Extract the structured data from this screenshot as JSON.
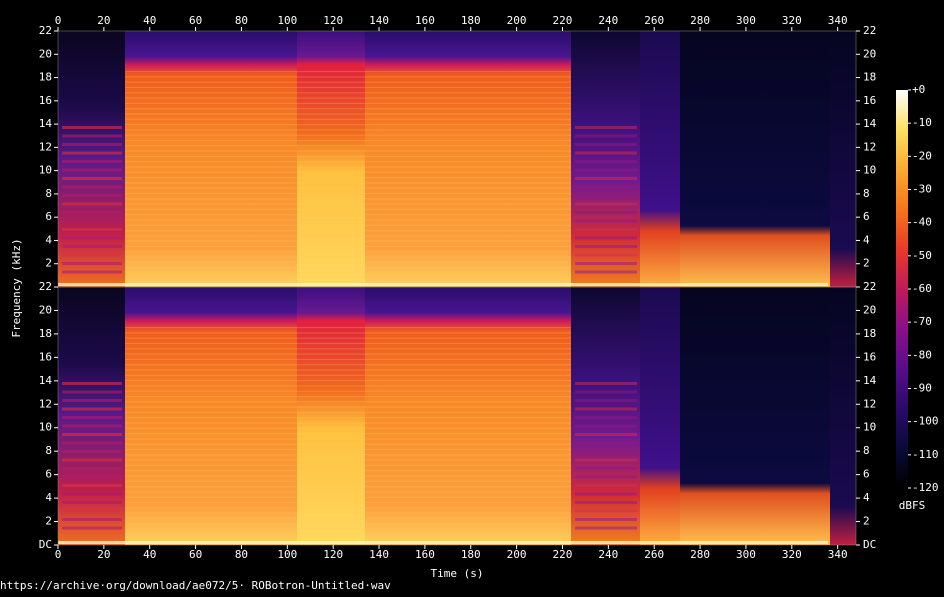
{
  "chart_data": [
    {
      "type": "spectrogram",
      "ylabel": "Frequency (kHz)",
      "xlim": [
        0,
        348
      ],
      "xticks": [
        0,
        20,
        40,
        60,
        80,
        100,
        120,
        140,
        160,
        180,
        200,
        220,
        240,
        260,
        280,
        300,
        320,
        340
      ],
      "ylim": [
        0,
        22
      ],
      "yticks": [
        2,
        4,
        6,
        8,
        10,
        12,
        14,
        16,
        18,
        20,
        22
      ],
      "colorbar": {
        "label": "dBFS",
        "lim": [
          -120,
          0
        ],
        "ticks": [
          {
            "value": 0,
            "label": "+0"
          },
          -10,
          -20,
          -30,
          -40,
          -50,
          -60,
          -70,
          -80,
          -90,
          -100,
          -110,
          -120
        ],
        "colors": [
          "#000000",
          "#0a0a3a",
          "#2a0a6a",
          "#5a0c8a",
          "#8a0f8a",
          "#c01a5a",
          "#e83a2a",
          "#f8741a",
          "#fca830",
          "#fde060",
          "#ffffff"
        ]
      }
    },
    {
      "type": "spectrogram",
      "xlabel": "Time (s)",
      "xlim": [
        0,
        348
      ],
      "xticks": [
        0,
        20,
        40,
        60,
        80,
        100,
        120,
        140,
        160,
        180,
        200,
        220,
        240,
        260,
        280,
        300,
        320,
        340
      ],
      "ylim": [
        0,
        22
      ],
      "yticks": [
        {
          "value": 0,
          "label": "DC"
        },
        2,
        4,
        6,
        8,
        10,
        12,
        14,
        16,
        18,
        20,
        22
      ]
    }
  ],
  "source": "https://archive·org/download/ae072/5· ROBotron-Untitled·wav"
}
